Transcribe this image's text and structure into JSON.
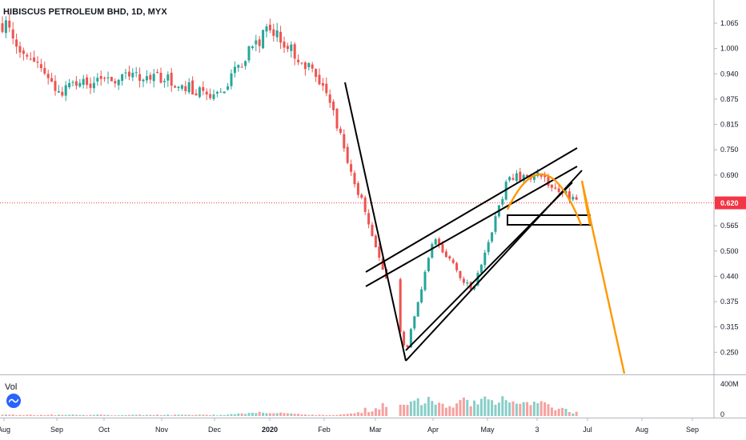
{
  "header": {
    "ticker_title": "HIBISCUS PETROLEUM BHD, 1D, MYX"
  },
  "volume_pane": {
    "label": "Vol",
    "axis_labels": [
      "400M",
      "0"
    ]
  },
  "colors": {
    "up": "#26a69a",
    "down": "#ef5350",
    "pattern_orange": "#ff9800",
    "drawing_black": "#000000",
    "last_price_tag": "#f23645",
    "grid": "#e0e3eb",
    "text": "#131722"
  },
  "icons": {
    "volume": "wave-icon"
  },
  "chart_data": {
    "type": "candlestick",
    "title": "HIBISCUS PETROLEUM BHD, 1D, MYX",
    "xlabel": "",
    "ylabel": "",
    "y_ticks": [
      "1.065",
      "1.000",
      "0.940",
      "0.875",
      "0.815",
      "0.750",
      "0.690",
      "0.630",
      "0.565",
      "0.500",
      "0.440",
      "0.375",
      "0.315",
      "0.250"
    ],
    "x_ticks": [
      "Aug",
      "Sep",
      "Oct",
      "Nov",
      "Dec",
      "2020",
      "Feb",
      "Mar",
      "Apr",
      "May",
      "3",
      "Jul",
      "Aug",
      "Sep"
    ],
    "ylim": [
      0.21,
      1.1
    ],
    "last_price": "0.620",
    "grid": false,
    "price_path": [
      [
        "Aug",
        1.06
      ],
      [
        "Sep",
        0.89
      ],
      [
        "Oct",
        0.93
      ],
      [
        "Nov",
        0.93
      ],
      [
        "Dec",
        0.88
      ],
      [
        "2020",
        1.06
      ],
      [
        "Feb",
        0.91
      ],
      [
        "Mar",
        0.45
      ],
      [
        "Mar",
        0.25
      ],
      [
        "Apr",
        0.53
      ],
      [
        "May",
        0.4
      ],
      [
        "May",
        0.68
      ],
      [
        "3",
        0.69
      ],
      [
        "Jul",
        0.62
      ]
    ],
    "volume_peaks_M": [
      [
        "2020",
        40
      ],
      [
        "Mar",
        140
      ],
      [
        "Apr",
        210
      ],
      [
        "May",
        260
      ],
      [
        "3",
        180
      ]
    ],
    "annotations": [
      {
        "type": "trendline",
        "color": "black",
        "from": [
          "Feb",
          0.91
        ],
        "to": [
          "Mar",
          0.23
        ]
      },
      {
        "type": "rising-wedge",
        "color": "black"
      },
      {
        "type": "rounded-top",
        "color": "orange"
      },
      {
        "type": "projection",
        "color": "orange",
        "from": [
          "Jul",
          0.68
        ],
        "to": [
          "Aug",
          0.22
        ]
      },
      {
        "type": "support-box",
        "color": "black",
        "range": [
          0.57,
          0.59
        ]
      }
    ]
  }
}
